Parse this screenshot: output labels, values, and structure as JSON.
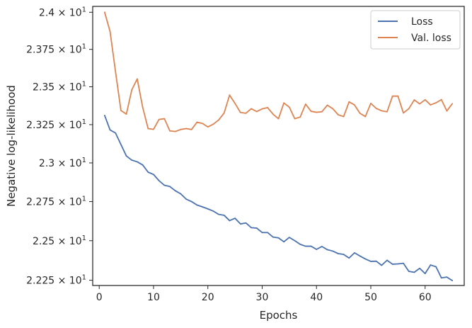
{
  "chart_data": {
    "type": "line",
    "title": "",
    "xlabel": "Epochs",
    "ylabel": "Negative log-likelihood",
    "xlim": [
      -1.2,
      67.2
    ],
    "ylim": [
      22.217,
      24.04
    ],
    "yscale": "log",
    "grid": false,
    "legend_position": "top-right",
    "x_ticks": [
      0,
      10,
      20,
      30,
      40,
      50,
      60
    ],
    "x_tick_labels": [
      "0",
      "10",
      "20",
      "30",
      "40",
      "50",
      "60"
    ],
    "y_ticks": [
      22.25,
      22.5,
      22.75,
      23.0,
      23.25,
      23.5,
      23.75,
      24.0
    ],
    "y_tick_labels": [
      [
        "2.225",
        "10",
        "1"
      ],
      [
        "2.25",
        "10",
        "1"
      ],
      [
        "2.275",
        "10",
        "1"
      ],
      [
        "2.3",
        "10",
        "1"
      ],
      [
        "2.325",
        "10",
        "1"
      ],
      [
        "2.35",
        "10",
        "1"
      ],
      [
        "2.375",
        "10",
        "1"
      ],
      [
        "2.4",
        "10",
        "1"
      ]
    ],
    "x": [
      1,
      2,
      3,
      4,
      5,
      6,
      7,
      8,
      9,
      10,
      11,
      12,
      13,
      14,
      15,
      16,
      17,
      18,
      19,
      20,
      21,
      22,
      23,
      24,
      25,
      26,
      27,
      28,
      29,
      30,
      31,
      32,
      33,
      34,
      35,
      36,
      37,
      38,
      39,
      40,
      41,
      42,
      43,
      44,
      45,
      46,
      47,
      48,
      49,
      50,
      51,
      52,
      53,
      54,
      55,
      56,
      57,
      58,
      59,
      60,
      61,
      62,
      63,
      64,
      65
    ],
    "series": [
      {
        "name": "Loss",
        "color": "#4c72b0",
        "values": [
          23.31,
          23.215,
          23.195,
          23.12,
          23.045,
          23.018,
          23.007,
          22.987,
          22.94,
          22.925,
          22.885,
          22.855,
          22.847,
          22.82,
          22.8,
          22.766,
          22.75,
          22.728,
          22.716,
          22.703,
          22.689,
          22.668,
          22.662,
          22.628,
          22.643,
          22.607,
          22.613,
          22.583,
          22.58,
          22.552,
          22.552,
          22.523,
          22.518,
          22.493,
          22.521,
          22.5,
          22.477,
          22.465,
          22.465,
          22.445,
          22.463,
          22.443,
          22.434,
          22.418,
          22.413,
          22.39,
          22.423,
          22.403,
          22.384,
          22.369,
          22.37,
          22.344,
          22.376,
          22.351,
          22.353,
          22.357,
          22.306,
          22.3,
          22.325,
          22.292,
          22.346,
          22.335,
          22.265,
          22.27,
          22.248
        ]
      },
      {
        "name": "Val. loss",
        "color": "#dd8452",
        "values": [
          24.0,
          23.87,
          23.6,
          23.343,
          23.319,
          23.48,
          23.552,
          23.365,
          23.224,
          23.219,
          23.284,
          23.289,
          23.209,
          23.205,
          23.218,
          23.224,
          23.218,
          23.266,
          23.258,
          23.235,
          23.253,
          23.281,
          23.327,
          23.445,
          23.39,
          23.33,
          23.325,
          23.355,
          23.336,
          23.354,
          23.362,
          23.319,
          23.289,
          23.393,
          23.365,
          23.289,
          23.3,
          23.385,
          23.338,
          23.331,
          23.335,
          23.378,
          23.355,
          23.315,
          23.303,
          23.4,
          23.38,
          23.325,
          23.303,
          23.39,
          23.357,
          23.341,
          23.335,
          23.438,
          23.438,
          23.327,
          23.355,
          23.413,
          23.387,
          23.414,
          23.38,
          23.394,
          23.415,
          23.34,
          23.388
        ]
      }
    ]
  }
}
